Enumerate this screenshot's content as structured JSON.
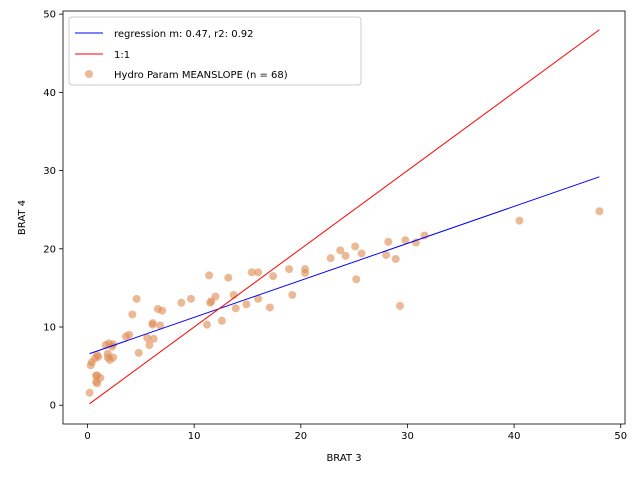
{
  "chart_data": {
    "type": "scatter",
    "xlabel": "BRAT 3",
    "ylabel": "BRAT 4",
    "xlim": [
      -2.3,
      50.4
    ],
    "ylim": [
      -2.4,
      50.4
    ],
    "xticks": [
      0,
      10,
      20,
      30,
      40,
      50
    ],
    "yticks": [
      0,
      10,
      20,
      30,
      40,
      50
    ],
    "grid": false,
    "legend_position": "top-left",
    "colors": {
      "regression": "#0000ff",
      "identity": "#ff0000",
      "points": "#e08a50"
    },
    "series": [
      {
        "name": "regression m: 0.47, r2: 0.92",
        "kind": "line",
        "x": [
          0.2,
          48.0
        ],
        "y": [
          6.6,
          29.2
        ]
      },
      {
        "name": "1:1",
        "kind": "line",
        "x": [
          0.2,
          48.0
        ],
        "y": [
          0.2,
          48.0
        ]
      },
      {
        "name": "Hydro Param MEANSLOPE (n = 68)",
        "kind": "scatter",
        "x": [
          0.2,
          0.3,
          0.4,
          0.8,
          0.8,
          0.9,
          0.9,
          1.0,
          1.2,
          1.7,
          1.9,
          2.0,
          2.1,
          2.3,
          2.4,
          3.6,
          3.9,
          4.2,
          4.6,
          4.8,
          5.6,
          5.8,
          6.1,
          6.1,
          6.2,
          6.6,
          6.8,
          7.0,
          8.8,
          9.7,
          11.2,
          11.4,
          11.5,
          11.6,
          12.0,
          12.6,
          13.2,
          13.7,
          13.9,
          14.9,
          15.4,
          16.0,
          16.0,
          17.1,
          17.4,
          18.9,
          19.2,
          20.4,
          20.4,
          22.8,
          23.7,
          24.2,
          25.1,
          25.2,
          25.7,
          28.0,
          28.2,
          28.9,
          29.3,
          29.8,
          30.8,
          31.6,
          40.5,
          48.0,
          1.9,
          2.4,
          0.9,
          0.7
        ],
        "y": [
          1.6,
          5.1,
          5.5,
          3.8,
          3.0,
          2.8,
          6.4,
          6.2,
          3.5,
          7.7,
          6.6,
          7.9,
          5.8,
          7.5,
          6.1,
          8.8,
          9.0,
          11.6,
          13.6,
          6.7,
          8.6,
          7.7,
          10.3,
          10.5,
          8.5,
          12.3,
          10.2,
          12.1,
          13.1,
          13.6,
          10.3,
          16.6,
          13.1,
          13.3,
          13.9,
          10.8,
          16.3,
          14.1,
          12.4,
          12.9,
          17.0,
          17.0,
          13.6,
          12.5,
          16.5,
          17.4,
          14.1,
          17.4,
          16.9,
          18.8,
          19.8,
          19.1,
          20.3,
          16.1,
          19.4,
          19.2,
          20.9,
          18.7,
          12.7,
          21.1,
          20.8,
          21.7,
          23.6,
          24.8,
          6.1,
          7.8,
          3.8,
          6.0
        ]
      }
    ]
  }
}
